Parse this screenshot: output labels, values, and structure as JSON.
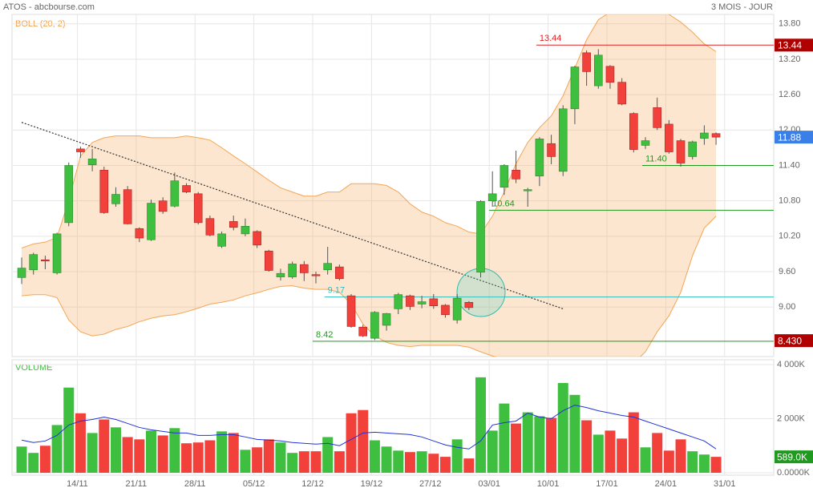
{
  "chart_data": {
    "type": "candlestick",
    "title": "ATOS - abcbourse.com",
    "subtitle": "3 MOIS - JOUR",
    "indicator_label": "BOLL (20, 2)",
    "volume_label": "VOLUME",
    "xlim": [
      -0.82,
      63.9
    ],
    "xticks": [
      {
        "value": 5,
        "label": "14/11"
      },
      {
        "value": 10,
        "label": "21/11"
      },
      {
        "value": 15,
        "label": "28/11"
      },
      {
        "value": 20,
        "label": "05/12"
      },
      {
        "value": 25,
        "label": "12/12"
      },
      {
        "value": 30,
        "label": "19/12"
      },
      {
        "value": 35,
        "label": "27/12"
      },
      {
        "value": 40,
        "label": "03/01"
      },
      {
        "value": 45,
        "label": "10/01"
      },
      {
        "value": 50,
        "label": "17/01"
      },
      {
        "value": 55,
        "label": "24/01"
      },
      {
        "value": 60,
        "label": "31/01"
      }
    ],
    "ylim": [
      8.16,
      13.96
    ],
    "yticks": [
      {
        "value": 13.8,
        "label": "13.80"
      },
      {
        "value": 13.2,
        "label": "13.20"
      },
      {
        "value": 12.6,
        "label": "12.60"
      },
      {
        "value": 12.0,
        "label": "12.00"
      },
      {
        "value": 11.4,
        "label": "11.40"
      },
      {
        "value": 10.8,
        "label": "10.80"
      },
      {
        "value": 10.2,
        "label": "10.20"
      },
      {
        "value": 9.6,
        "label": "9.60"
      },
      {
        "value": 9.0,
        "label": "9.00"
      }
    ],
    "y2lim": [
      0,
      4000
    ],
    "y2ticks": [
      {
        "value": 4000,
        "label": "4 000K"
      },
      {
        "value": 2000,
        "label": "2 000K"
      },
      {
        "value": 0,
        "label": "0.0000K"
      }
    ],
    "grid": true,
    "up_color": "#3fbf3f",
    "down_color": "#f2403a",
    "band_color": "#f5a554",
    "volume_ma_color": "#2233dd",
    "open": [
      9.5,
      9.63,
      9.8,
      9.58,
      10.43,
      11.68,
      11.41,
      11.32,
      10.75,
      10.99,
      10.33,
      10.14,
      10.8,
      10.71,
      11.06,
      10.92,
      10.5,
      10.03,
      10.45,
      10.24,
      10.28,
      9.95,
      9.51,
      9.51,
      9.72,
      9.55,
      9.63,
      9.68,
      9.19,
      8.66,
      8.47,
      8.69,
      8.97,
      9.19,
      9.05,
      9.14,
      9.03,
      8.78,
      9.08,
      9.59,
      10.8,
      11.03,
      11.32,
      10.99,
      11.22,
      11.77,
      11.3,
      12.36,
      13.31,
      12.75,
      13.08,
      12.81,
      12.28,
      11.74,
      12.38,
      12.1,
      11.82,
      11.55,
      11.86,
      11.94
    ],
    "high": [
      9.84,
      9.92,
      9.87,
      10.26,
      11.45,
      11.72,
      11.68,
      11.38,
      11.03,
      11.05,
      10.35,
      10.82,
      10.86,
      11.28,
      11.1,
      10.95,
      10.55,
      10.28,
      10.55,
      10.5,
      10.3,
      9.97,
      9.65,
      9.77,
      9.78,
      9.6,
      10.02,
      9.72,
      9.22,
      8.7,
      8.93,
      8.9,
      9.24,
      9.21,
      9.19,
      9.22,
      9.05,
      9.22,
      9.1,
      10.81,
      11.3,
      11.42,
      11.65,
      11.02,
      11.88,
      11.92,
      12.42,
      13.09,
      13.35,
      13.37,
      13.1,
      12.88,
      12.3,
      11.88,
      12.55,
      12.17,
      11.85,
      11.82,
      12.08,
      11.96
    ],
    "low": [
      9.39,
      9.55,
      9.64,
      9.55,
      10.37,
      11.53,
      11.3,
      10.58,
      10.7,
      10.4,
      10.1,
      10.12,
      10.58,
      10.69,
      10.93,
      10.4,
      10.2,
      10.0,
      10.3,
      10.2,
      10.0,
      9.6,
      9.45,
      9.48,
      9.44,
      9.4,
      9.55,
      9.45,
      8.65,
      8.49,
      8.44,
      8.6,
      8.88,
      8.95,
      8.98,
      8.97,
      8.82,
      8.72,
      8.95,
      9.5,
      10.7,
      10.9,
      11.1,
      10.7,
      11.05,
      11.42,
      11.22,
      12.1,
      12.75,
      12.7,
      12.7,
      12.42,
      11.62,
      11.68,
      12.0,
      11.6,
      11.38,
      11.5,
      11.75,
      11.75
    ],
    "close": [
      9.66,
      9.89,
      9.78,
      10.24,
      11.4,
      11.63,
      11.51,
      10.6,
      10.91,
      10.41,
      10.17,
      10.76,
      10.62,
      11.14,
      10.95,
      10.43,
      10.22,
      10.24,
      10.35,
      10.37,
      10.05,
      9.62,
      9.57,
      9.73,
      9.58,
      9.54,
      9.74,
      9.48,
      8.67,
      8.51,
      8.91,
      8.89,
      9.21,
      9.01,
      9.09,
      9.02,
      8.87,
      9.15,
      8.99,
      10.79,
      10.92,
      11.4,
      11.17,
      10.99,
      11.85,
      11.55,
      12.36,
      13.07,
      12.99,
      13.27,
      12.81,
      12.44,
      11.67,
      11.82,
      12.04,
      11.63,
      11.44,
      11.8,
      11.95,
      11.88
    ],
    "boll_upper": [
      10.0,
      10.07,
      10.1,
      10.18,
      10.81,
      11.56,
      11.79,
      11.87,
      11.9,
      11.9,
      11.9,
      11.87,
      11.87,
      11.87,
      11.9,
      11.87,
      11.83,
      11.7,
      11.56,
      11.43,
      11.29,
      11.15,
      11.02,
      10.95,
      10.88,
      10.88,
      10.95,
      10.95,
      11.09,
      11.09,
      11.09,
      11.06,
      10.95,
      10.75,
      10.61,
      10.54,
      10.43,
      10.37,
      10.27,
      10.24,
      10.54,
      10.95,
      11.43,
      11.79,
      12.04,
      12.24,
      12.58,
      13.05,
      13.53,
      13.87,
      14.0,
      14.04,
      14.04,
      14.04,
      14.03,
      13.96,
      13.83,
      13.66,
      13.46,
      13.33
    ],
    "boll_lower": [
      9.19,
      9.21,
      9.21,
      9.16,
      8.78,
      8.58,
      8.51,
      8.54,
      8.62,
      8.67,
      8.75,
      8.81,
      8.85,
      8.87,
      8.92,
      8.98,
      9.05,
      9.08,
      9.12,
      9.19,
      9.24,
      9.3,
      9.35,
      9.36,
      9.32,
      9.3,
      9.3,
      9.25,
      9.05,
      8.71,
      8.51,
      8.4,
      8.35,
      8.33,
      8.35,
      8.35,
      8.35,
      8.35,
      8.32,
      8.24,
      8.17,
      8.13,
      8.1,
      8.0,
      7.95,
      7.9,
      7.9,
      7.9,
      7.9,
      7.95,
      7.97,
      8.0,
      8.05,
      8.24,
      8.58,
      8.85,
      9.25,
      9.87,
      10.34,
      10.54
    ],
    "volume": [
      970,
      735,
      1000,
      1765,
      3150,
      2200,
      1470,
      1970,
      1680,
      1320,
      1235,
      1560,
      1380,
      1650,
      1090,
      1120,
      1200,
      1530,
      1470,
      850,
      940,
      1235,
      1120,
      735,
      795,
      795,
      1320,
      795,
      2200,
      2320,
      1200,
      970,
      820,
      765,
      795,
      705,
      590,
      1235,
      530,
      3530,
      1560,
      2560,
      1820,
      2235,
      2090,
      2030,
      3320,
      2880,
      1940,
      1410,
      1560,
      1265,
      2235,
      940,
      1470,
      820,
      1235,
      795,
      675,
      589
    ],
    "volume_ma": [
      1206,
      1118,
      1176,
      1382,
      1765,
      1912,
      1971,
      2059,
      1971,
      1824,
      1676,
      1588,
      1529,
      1471,
      1471,
      1382,
      1382,
      1412,
      1412,
      1324,
      1235,
      1206,
      1176,
      1118,
      1088,
      1059,
      1088,
      1000,
      1235,
      1471,
      1500,
      1471,
      1441,
      1412,
      1324,
      1176,
      1029,
      941,
      882,
      1176,
      1765,
      1853,
      1912,
      2206,
      2059,
      2000,
      2294,
      2500,
      2412,
      2294,
      2206,
      2118,
      2059,
      1912,
      1765,
      1618,
      1471,
      1324,
      1176,
      882
    ],
    "levels": [
      {
        "value": 13.44,
        "from": 44,
        "color": "#dd2222"
      },
      {
        "value": 11.4,
        "label": "11.40",
        "from": 53,
        "color": "#1f9a1f"
      },
      {
        "value": 10.64,
        "from": 40,
        "color": "#1f9a1f"
      },
      {
        "value": 9.17,
        "from": 26,
        "color": "#33bbbb"
      },
      {
        "value": 8.42,
        "from": 25,
        "color": "#1f9a1f"
      }
    ],
    "trendline": {
      "from": [
        0,
        12.13
      ],
      "to": [
        46,
        8.97
      ]
    },
    "price_badges": [
      {
        "value": 13.44,
        "color": "#b00000"
      },
      {
        "value": 11.88,
        "color": "#3a7ee8"
      },
      {
        "value": 8.43,
        "label": "8.430",
        "color": "#b00000"
      }
    ],
    "volume_badge": {
      "value": 589,
      "label": "589.0K",
      "color": "#1f9a1f"
    }
  }
}
